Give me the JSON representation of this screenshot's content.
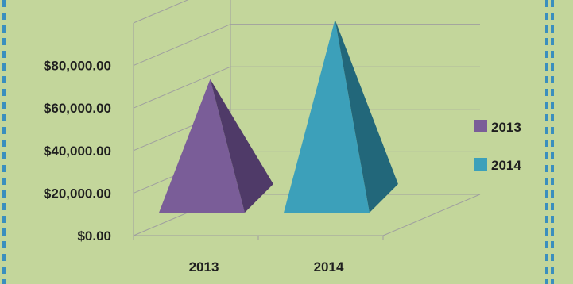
{
  "colors": {
    "plot_background": "#c3d69b",
    "border_dash": "#3a8fbe",
    "gridline": "#9f9f9f"
  },
  "chart_data": {
    "type": "3d-pyramid-bar",
    "title": "",
    "xlabel": "",
    "ylabel": "",
    "categories": [
      "2013",
      "2014"
    ],
    "series": [
      {
        "name": "2013",
        "values": [
          65000,
          null
        ],
        "color": "#7a5d98",
        "shade": "#4f3a68"
      },
      {
        "name": "2014",
        "values": [
          null,
          93000
        ],
        "color": "#3ca0ba",
        "shade": "#22677a"
      }
    ],
    "ylim": [
      0,
      100000
    ],
    "y_ticks": [
      "$0.00",
      "$20,000.00",
      "$40,000.00",
      "$60,000.00",
      "$80,000.00"
    ],
    "grid": true,
    "legend_position": "right"
  }
}
